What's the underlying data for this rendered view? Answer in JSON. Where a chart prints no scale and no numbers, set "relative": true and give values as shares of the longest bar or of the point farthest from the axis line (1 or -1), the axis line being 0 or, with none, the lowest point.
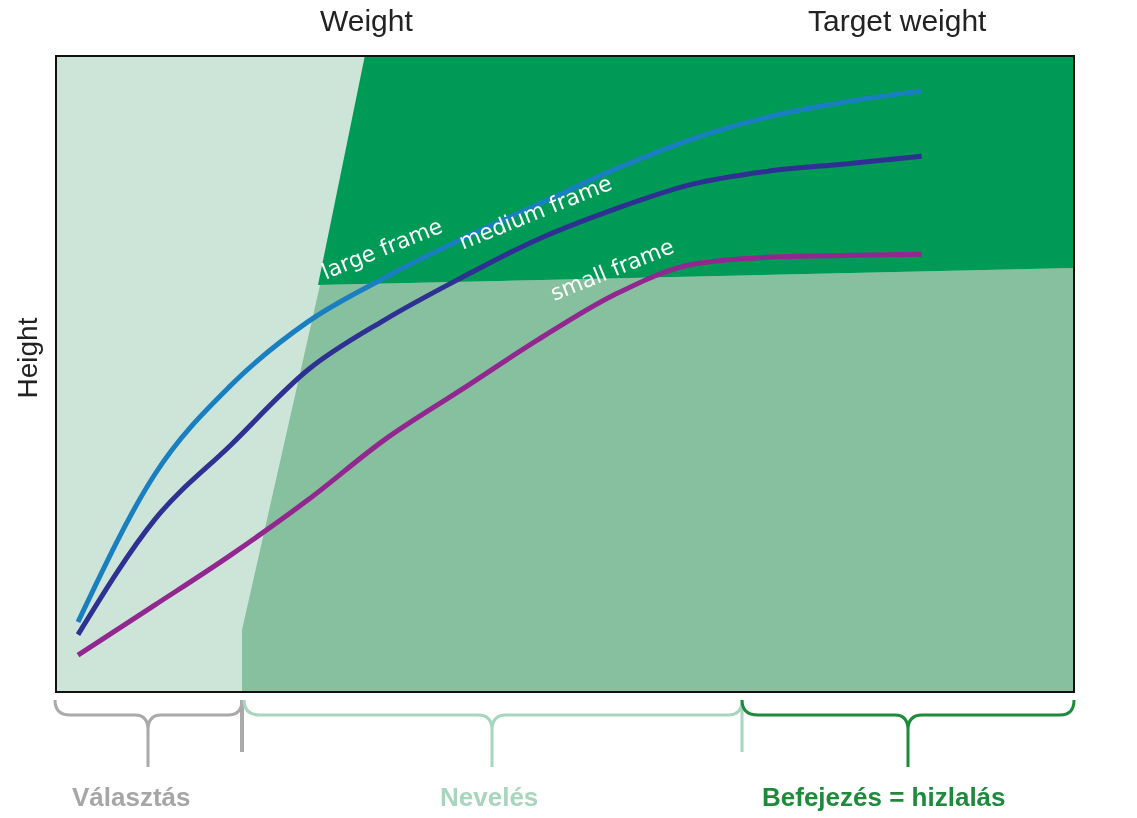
{
  "chart_data": {
    "type": "line",
    "xlabel": "Weight",
    "ylabel": "Height",
    "relative": true,
    "categories": [
      null,
      null,
      null,
      null,
      null,
      null,
      null,
      null,
      null,
      null,
      null,
      null
    ],
    "series": [
      {
        "name": "large frame",
        "color": "#1a7fc0",
        "values": [
          0.118,
          0.363,
          0.512,
          0.617,
          0.69,
          0.754,
          0.812,
          0.87,
          0.92,
          0.957,
          0.982,
          1.0
        ]
      },
      {
        "name": "medium frame",
        "color": "#2e3192",
        "values": [
          0.097,
          0.288,
          0.413,
          0.537,
          0.62,
          0.69,
          0.754,
          0.804,
          0.845,
          0.867,
          0.879,
          0.892
        ]
      },
      {
        "name": "small frame",
        "color": "#92278f",
        "values": [
          0.063,
          0.146,
          0.23,
          0.321,
          0.421,
          0.504,
          0.587,
          0.662,
          0.712,
          0.724,
          0.727,
          0.729
        ]
      }
    ],
    "annotations": [
      "Target weight",
      "Választás",
      "Nevelés",
      "Befejezés = hizlalás"
    ]
  }
}
